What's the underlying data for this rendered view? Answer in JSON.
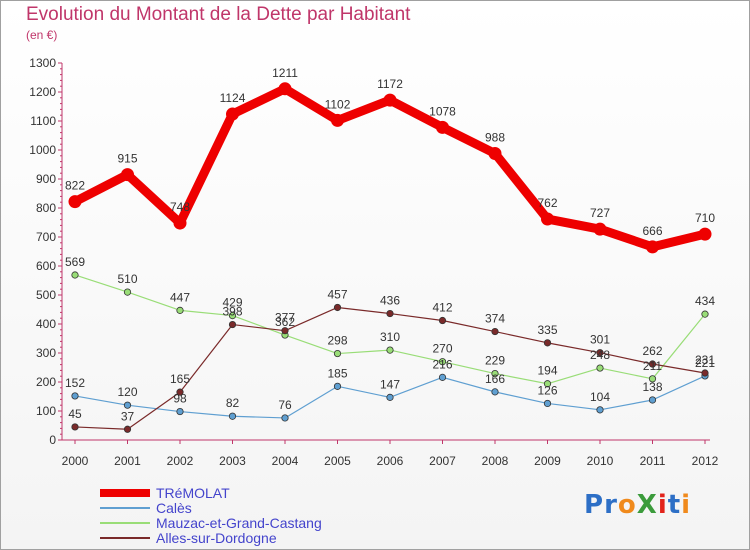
{
  "title": "Evolution du Montant de la Dette par Habitant",
  "subtitle": "(en €)",
  "logo": {
    "text": "ProXiti",
    "colors": [
      "#2d6fc6",
      "#2d6fc6",
      "#f08a1c",
      "#3b9b3b",
      "#e2231a",
      "#2d6fc6",
      "#f08a1c"
    ]
  },
  "chart_data": {
    "type": "line",
    "x": [
      "2000",
      "2001",
      "2002",
      "2003",
      "2004",
      "2005",
      "2006",
      "2007",
      "2008",
      "2009",
      "2010",
      "2011",
      "2012"
    ],
    "ylim": [
      0,
      1300
    ],
    "yticks": [
      0,
      100,
      200,
      300,
      400,
      500,
      600,
      700,
      800,
      900,
      1000,
      1100,
      1200,
      1300
    ],
    "grid": false,
    "legend_position": "bottom-left",
    "series": [
      {
        "name": "TRéMOLAT",
        "color": "#ee0000",
        "values": [
          822,
          915,
          748,
          1124,
          1211,
          1102,
          1172,
          1078,
          988,
          762,
          727,
          666,
          710
        ]
      },
      {
        "name": "Calès",
        "color": "#5f9fd1",
        "values": [
          152,
          120,
          98,
          82,
          76,
          185,
          147,
          216,
          166,
          126,
          104,
          138,
          221
        ]
      },
      {
        "name": "Mauzac-et-Grand-Castang",
        "color": "#99dd77",
        "values": [
          569,
          510,
          447,
          429,
          362,
          298,
          310,
          270,
          229,
          194,
          248,
          211,
          434
        ]
      },
      {
        "name": "Alles-sur-Dordogne",
        "color": "#7a2a2a",
        "values": [
          45,
          37,
          165,
          398,
          377,
          457,
          436,
          412,
          374,
          335,
          301,
          262,
          231
        ]
      }
    ]
  }
}
